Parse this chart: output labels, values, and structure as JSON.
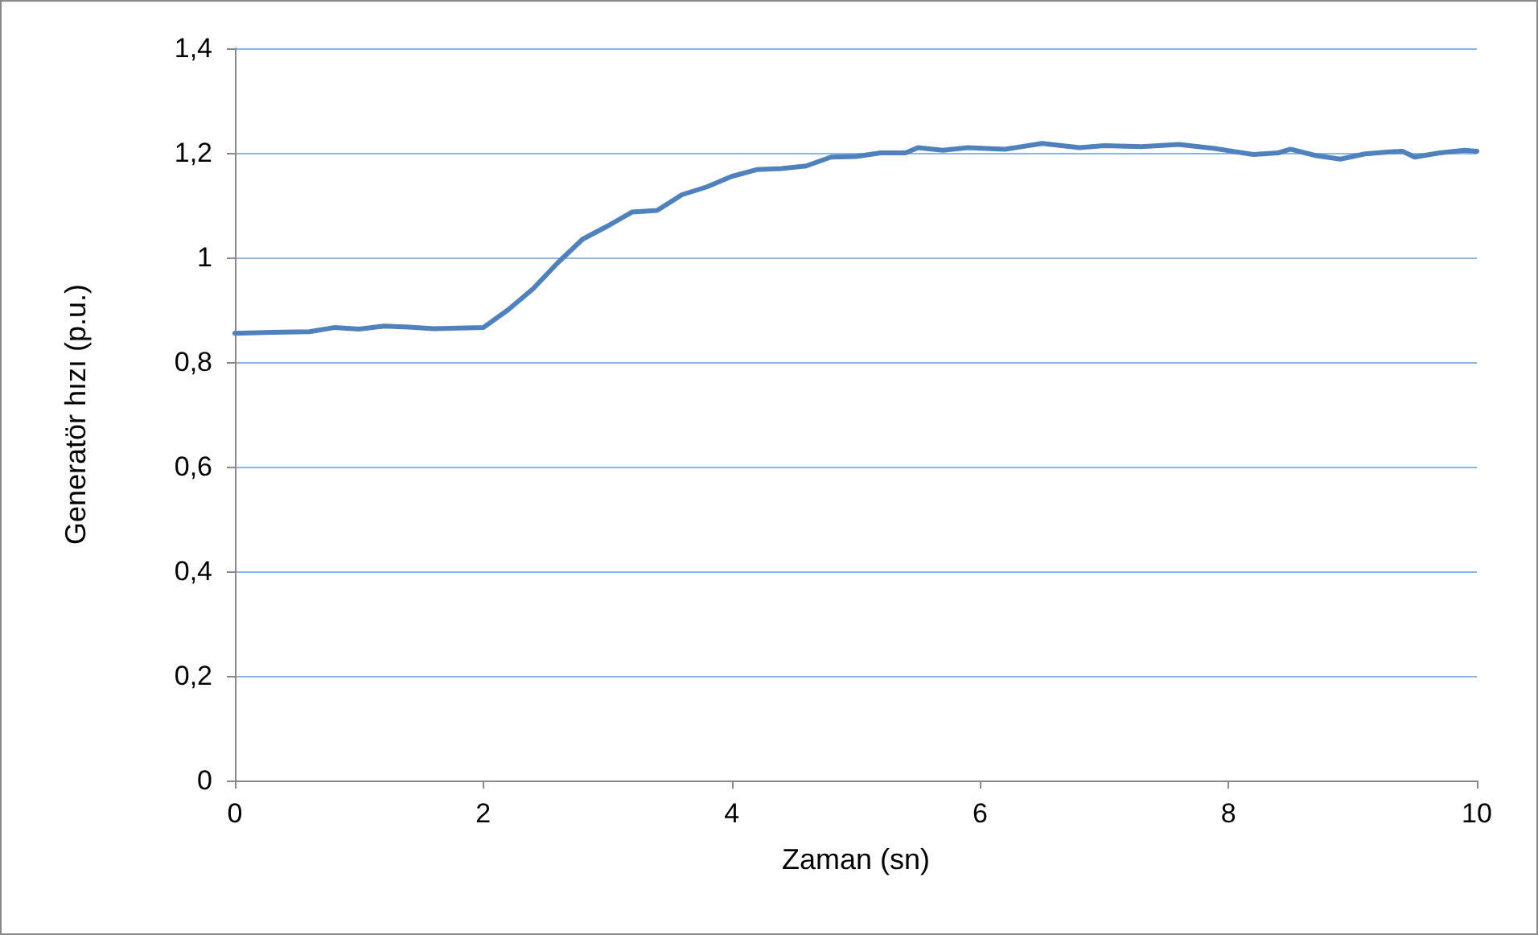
{
  "chart_data": {
    "type": "line",
    "xlabel": "Zaman (sn)",
    "ylabel": "Generatör hızı (p.u.)",
    "x": [
      0,
      0.3,
      0.6,
      0.8,
      1.0,
      1.2,
      1.4,
      1.6,
      1.8,
      2.0,
      2.2,
      2.4,
      2.6,
      2.8,
      3.0,
      3.2,
      3.4,
      3.6,
      3.8,
      4.0,
      4.2,
      4.4,
      4.6,
      4.8,
      5.0,
      5.2,
      5.4,
      5.5,
      5.7,
      5.9,
      6.2,
      6.5,
      6.8,
      7.0,
      7.3,
      7.6,
      7.9,
      8.2,
      8.4,
      8.5,
      8.7,
      8.9,
      9.1,
      9.3,
      9.4,
      9.5,
      9.7,
      9.9,
      10
    ],
    "series": [
      {
        "color": "#4f81bd",
        "values": [
          0.855,
          0.857,
          0.858,
          0.866,
          0.863,
          0.869,
          0.867,
          0.864,
          0.865,
          0.866,
          0.9,
          0.94,
          0.99,
          1.035,
          1.06,
          1.087,
          1.09,
          1.12,
          1.135,
          1.155,
          1.168,
          1.17,
          1.175,
          1.192,
          1.193,
          1.2,
          1.2,
          1.21,
          1.205,
          1.21,
          1.207,
          1.218,
          1.21,
          1.214,
          1.212,
          1.216,
          1.208,
          1.197,
          1.2,
          1.207,
          1.195,
          1.188,
          1.198,
          1.202,
          1.203,
          1.192,
          1.2,
          1.205,
          1.203
        ]
      }
    ],
    "xlim": [
      0,
      10
    ],
    "xticks": [
      0,
      2,
      4,
      6,
      8,
      10
    ],
    "ylim": [
      0,
      1.4
    ],
    "yticks": [
      0,
      {
        "value": 0.2,
        "label": "0,2"
      },
      {
        "value": 0.4,
        "label": "0,4"
      },
      {
        "value": 0.6,
        "label": "0,6"
      },
      {
        "value": 0.8,
        "label": "0,8"
      },
      1,
      {
        "value": 1.2,
        "label": "1,2"
      },
      {
        "value": 1.4,
        "label": "1,4"
      }
    ],
    "grid": "y",
    "marker": "none",
    "line_style": "solid"
  }
}
